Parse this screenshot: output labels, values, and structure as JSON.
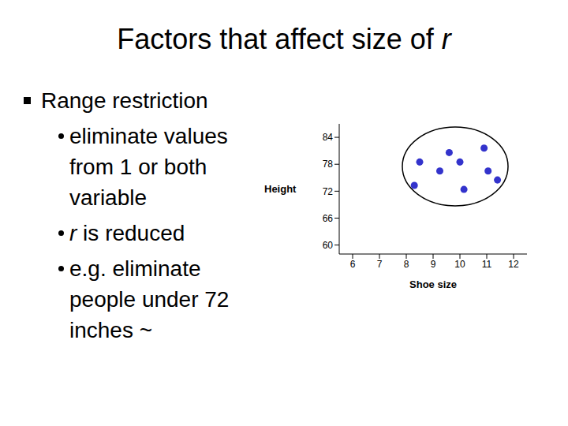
{
  "title": "Factors that affect size of r",
  "bullets": [
    {
      "text": "Range restriction",
      "sub": [
        "eliminate values from 1 or both variable",
        "r   is reduced",
        "e.g. eliminate people under 72 inches ~"
      ]
    }
  ],
  "chart_data": {
    "type": "scatter",
    "xlabel": "Shoe size",
    "ylabel": "Height",
    "x": [
      8.5,
      9.6,
      10.0,
      10.9,
      9.25,
      11.05,
      8.3,
      10.15,
      11.4
    ],
    "values": [
      78.5,
      80.6,
      78.5,
      81.6,
      76.5,
      76.5,
      73.3,
      72.4,
      74.5
    ],
    "color": "#3333cc",
    "marker": "circle",
    "xlim": [
      5.5,
      12.5
    ],
    "ylim": [
      58,
      87
    ],
    "xticks": [
      6,
      7,
      8,
      9,
      10,
      11,
      12
    ],
    "yticks": [
      60,
      66,
      72,
      78,
      84
    ],
    "grid": false
  }
}
